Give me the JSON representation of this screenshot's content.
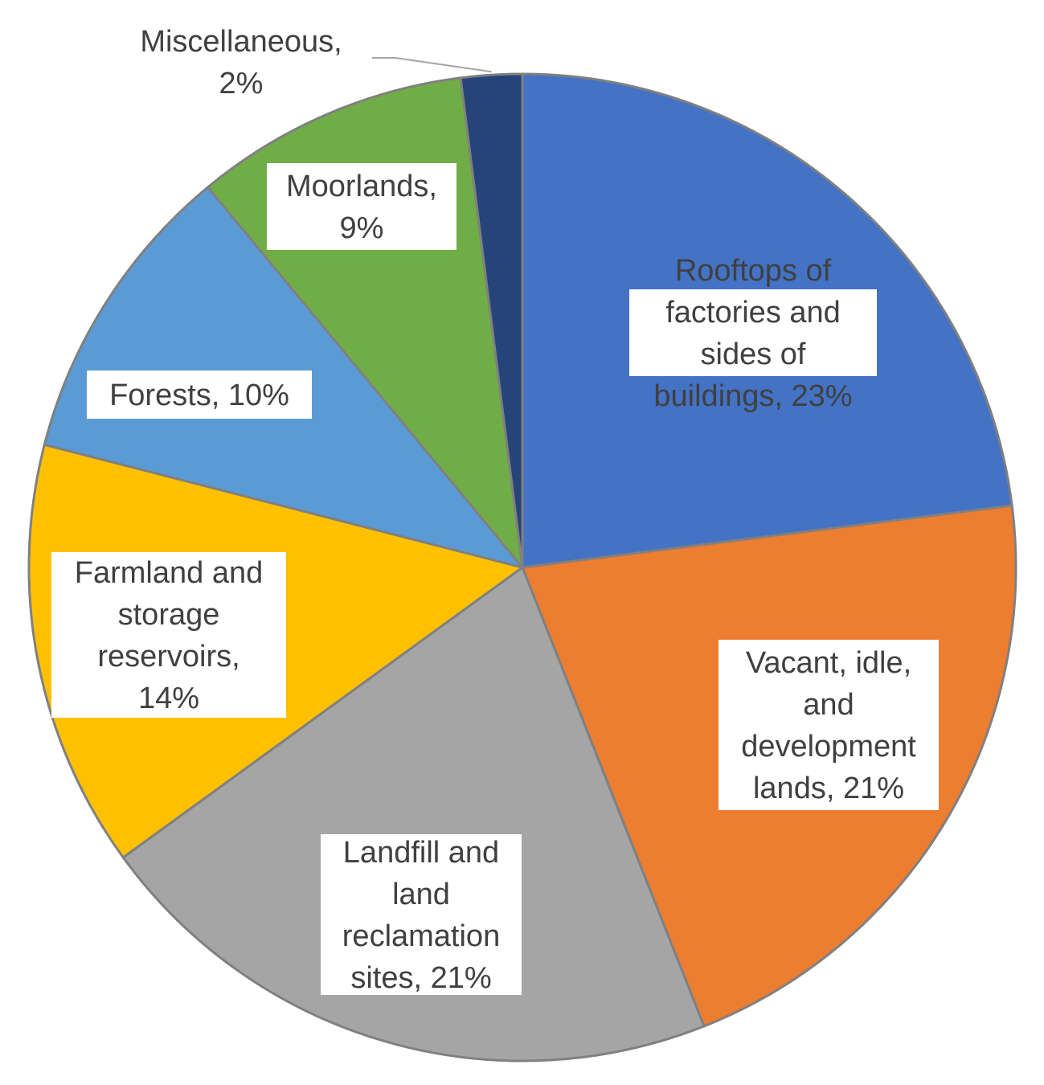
{
  "chart_data": {
    "type": "pie",
    "title": "",
    "legend": "none",
    "unit": "%",
    "start_angle_deg": 0,
    "direction": "clockwise",
    "slices": [
      {
        "name": "Rooftops of factories and sides of buildings",
        "value": 23,
        "color": "#4472C4",
        "label_lines": [
          "Rooftops of",
          "factories and",
          "sides of",
          "buildings, 23%"
        ]
      },
      {
        "name": "Vacant, idle, and development lands",
        "value": 21,
        "color": "#ED7D31",
        "label_lines": [
          "Vacant, idle,",
          "and",
          "development",
          "lands, 21%"
        ]
      },
      {
        "name": "Landfill and land reclamation sites",
        "value": 21,
        "color": "#A5A5A5",
        "label_lines": [
          "Landfill and",
          "land",
          "reclamation",
          "sites, 21%"
        ]
      },
      {
        "name": "Farmland and storage reservoirs",
        "value": 14,
        "color": "#FFC000",
        "label_lines": [
          "Farmland and",
          "storage",
          "reservoirs,",
          "14%"
        ]
      },
      {
        "name": "Forests",
        "value": 10,
        "color": "#5B9BD5",
        "label_lines": [
          "Forests, 10%"
        ]
      },
      {
        "name": "Moorlands",
        "value": 9,
        "color": "#70AD47",
        "label_lines": [
          "Moorlands,",
          "9%"
        ]
      },
      {
        "name": "Miscellaneous",
        "value": 2,
        "color": "#264478",
        "label_lines": [
          "Miscellaneous,",
          "2%"
        ]
      }
    ]
  }
}
